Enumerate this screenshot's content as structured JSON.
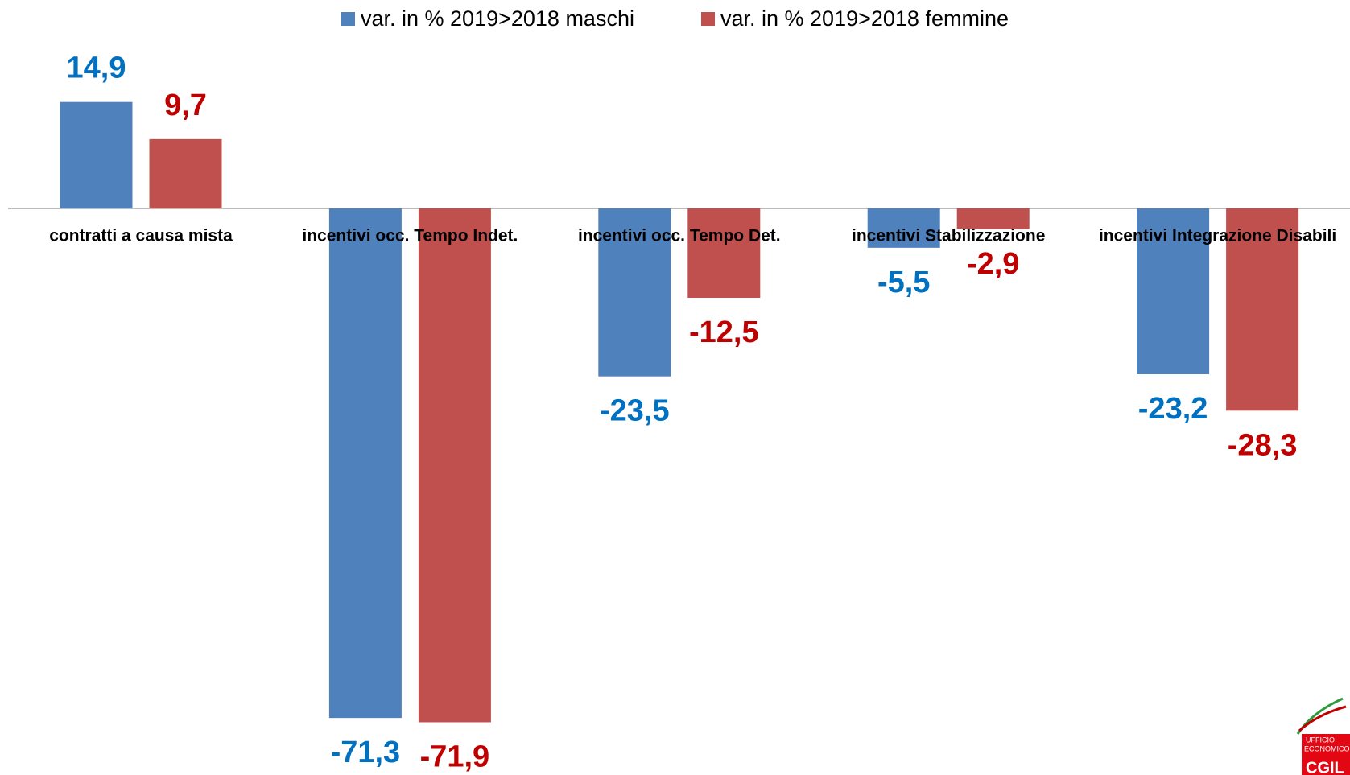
{
  "chart_data": {
    "type": "bar",
    "categories": [
      "contratti a causa mista",
      "incentivi occ. Tempo Indet.",
      "incentivi occ. Tempo Det.",
      "incentivi Stabilizzazione",
      "incentivi Integrazione Disabili"
    ],
    "series": [
      {
        "name": "var. in % 2019>2018 maschi",
        "color": "#4f81bd",
        "label_color": "#0070c0",
        "values": [
          14.9,
          -71.3,
          -23.5,
          -5.5,
          -23.2
        ],
        "value_labels": [
          "14,9",
          "-71,3",
          "-23,5",
          "-5,5",
          "-23,2"
        ]
      },
      {
        "name": "var. in % 2019>2018 femmine",
        "color": "#c0504d",
        "label_color": "#c00000",
        "values": [
          9.7,
          -71.9,
          -12.5,
          -2.9,
          -28.3
        ],
        "value_labels": [
          "9,7",
          "-71,9",
          "-12,5",
          "-2,9",
          "-28,3"
        ]
      }
    ],
    "legend": "top"
  },
  "logo": {
    "line1": "UFFICIO",
    "line2": "ECONOMICO",
    "line3": "CGIL"
  }
}
